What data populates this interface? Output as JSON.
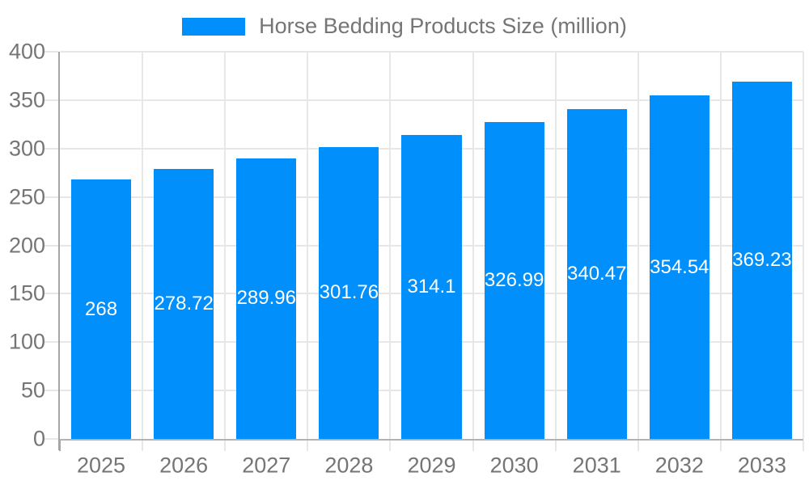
{
  "legend": {
    "label": "Horse Bedding Products Size (million)"
  },
  "colors": {
    "bar": "#008FFB",
    "grid": "#e7e7e7",
    "y_axis_border": "#a6a6a6",
    "x_axis_border": "#b3b3b3",
    "axis_label_text": "#757575",
    "bar_value_text": "#ffffff"
  },
  "chart_data": {
    "type": "bar",
    "title": "Horse Bedding Products Size (million)",
    "categories": [
      "2025",
      "2026",
      "2027",
      "2028",
      "2029",
      "2030",
      "2031",
      "2032",
      "2033"
    ],
    "values": [
      268,
      278.72,
      289.96,
      301.76,
      314.1,
      326.99,
      340.47,
      354.54,
      369.23
    ],
    "value_labels": [
      "268",
      "278.72",
      "289.96",
      "301.76",
      "314.1",
      "326.99",
      "340.47",
      "354.54",
      "369.23"
    ],
    "ytick_labels": [
      "0",
      "50",
      "100",
      "150",
      "200",
      "250",
      "300",
      "350",
      "400"
    ],
    "xlabel": "",
    "ylabel": "",
    "ylim": [
      0,
      400
    ],
    "ytick_step": 50,
    "grid": true,
    "legend_position": "top",
    "series_color": "#008FFB"
  }
}
